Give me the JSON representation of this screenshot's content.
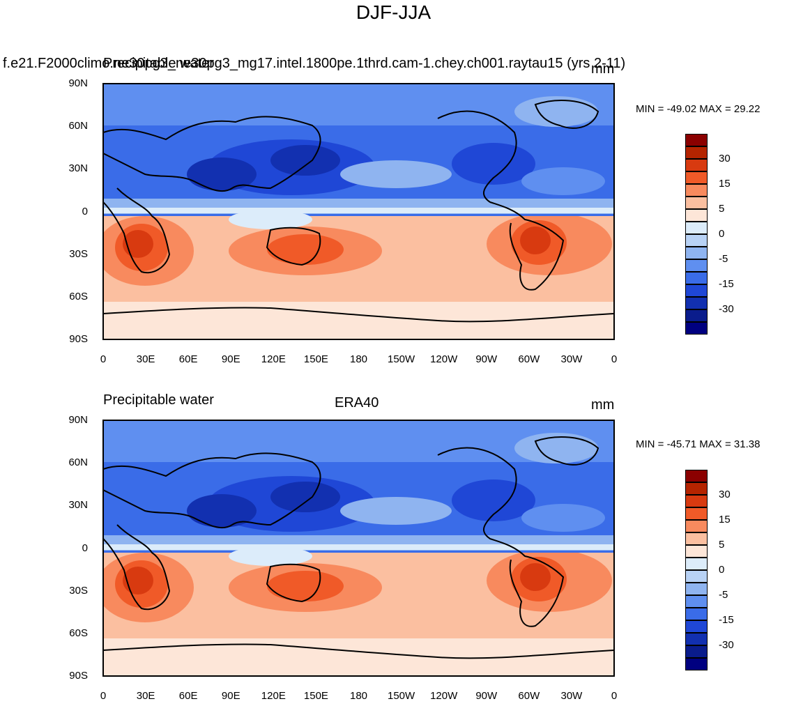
{
  "figure": {
    "title": "DJF-JJA"
  },
  "panels": [
    {
      "left_title": "f.e21.F2000climo.ne30pg3_ne30pg3_mg17.intel.1800pe.1thrd.cam-1.chey.ch001.raytau15 (yrs 2-11)",
      "left_title_overlap": "Precipitable water",
      "center_title": "",
      "units": "mm",
      "stats": "MIN = -49.02 MAX =  29.22"
    },
    {
      "left_title": "Precipitable water",
      "center_title": "ERA40",
      "units": "mm",
      "stats": "MIN = -45.71 MAX =  31.38"
    }
  ],
  "axes": {
    "lat_labels": [
      "90N",
      "60N",
      "30N",
      "0",
      "30S",
      "60S",
      "90S"
    ],
    "lon_labels": [
      "0",
      "30E",
      "60E",
      "90E",
      "120E",
      "150E",
      "180",
      "150W",
      "120W",
      "90W",
      "60W",
      "30W",
      "0"
    ]
  },
  "colorbar": {
    "labels": [
      "30",
      "15",
      "5",
      "0",
      "-5",
      "-15",
      "-30"
    ],
    "colors": [
      "#8b0000",
      "#b52400",
      "#d83a10",
      "#f05a28",
      "#f88a5e",
      "#fbbfa0",
      "#fde6d8",
      "#dcecfa",
      "#b8d2f5",
      "#8fb4f0",
      "#5f8ff0",
      "#3a6ce8",
      "#1f47d6",
      "#1230b0",
      "#0a1c8c",
      "#000080"
    ]
  },
  "chart_data": {
    "type": "heatmap",
    "title": "DJF-JJA",
    "variable": "Precipitable water",
    "units": "mm",
    "projection": "cylindrical equidistant, 0-360 longitude",
    "contour_levels": [
      -35,
      -30,
      -25,
      -20,
      -15,
      -10,
      -5,
      -2,
      0,
      2,
      5,
      10,
      15,
      20,
      25,
      30,
      35
    ],
    "colorbar_tick_values": [
      30,
      15,
      5,
      0,
      -5,
      -15,
      -30
    ],
    "panels": [
      {
        "name": "model",
        "min": -49.02,
        "max": 29.22
      },
      {
        "name": "ERA40",
        "min": -45.71,
        "max": 31.38
      }
    ],
    "xlabel": "",
    "ylabel": ""
  }
}
